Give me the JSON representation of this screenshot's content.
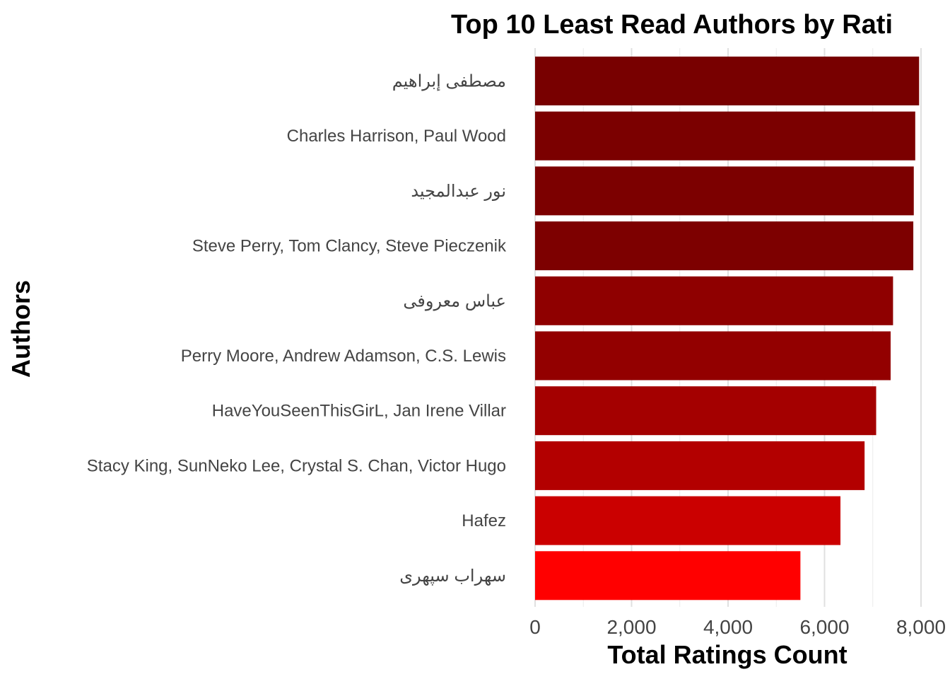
{
  "chart_data": {
    "type": "bar",
    "orientation": "horizontal",
    "title": "Top 10 Least Read Authors by Rati",
    "xlabel": "Total Ratings Count",
    "ylabel": "Authors",
    "xlim": [
      0,
      8000
    ],
    "x_ticks": [
      "0",
      "2,000",
      "4,000",
      "6,000",
      "8,000"
    ],
    "x_tick_values": [
      0,
      2000,
      4000,
      6000,
      8000
    ],
    "grid": true,
    "legend": "none",
    "categories": [
      "مصطفى إبراهيم",
      "Charles Harrison, Paul Wood",
      "نور عبدالمجيد",
      "Steve Perry, Tom Clancy, Steve Pieczenik",
      "عباس معروفی",
      "Perry Moore, Andrew Adamson, C.S. Lewis",
      "HaveYouSeenThisGirL, Jan Irene Villar",
      "Stacy King, SunNeko Lee, Crystal S. Chan, Victor Hugo",
      "Hafez",
      "سهراب سپهری"
    ],
    "values": [
      7960,
      7880,
      7850,
      7840,
      7420,
      7370,
      7070,
      6830,
      6330,
      5500
    ],
    "colors": [
      "#780000",
      "#7b0000",
      "#7c0000",
      "#7d0000",
      "#8f0000",
      "#930000",
      "#a40000",
      "#b30000",
      "#cb0000",
      "#ff0000"
    ]
  }
}
